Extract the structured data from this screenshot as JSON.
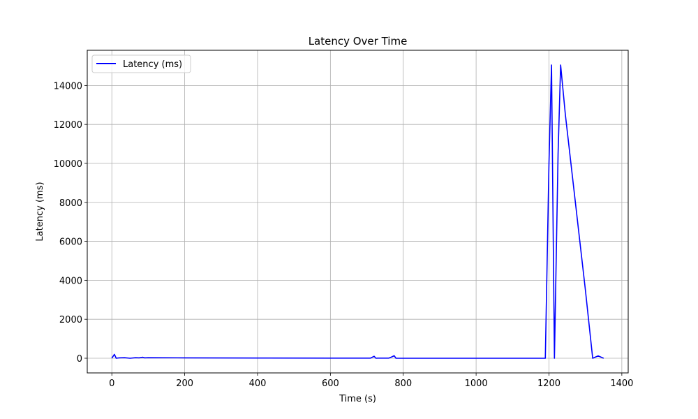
{
  "chart_data": {
    "type": "line",
    "title": "Latency Over Time",
    "xlabel": "Time (s)",
    "ylabel": "Latency (ms)",
    "xlim": [
      -67.5,
      1417.5
    ],
    "ylim": [
      -753,
      15805
    ],
    "xticks": [
      0,
      200,
      400,
      600,
      800,
      1000,
      1200,
      1400
    ],
    "yticks": [
      0,
      2000,
      4000,
      6000,
      8000,
      10000,
      12000,
      14000
    ],
    "grid": true,
    "legend_position": "top-left",
    "series": [
      {
        "name": "Latency (ms)",
        "color": "#0000ff",
        "x": [
          0,
          7,
          12,
          20,
          35,
          50,
          65,
          75,
          85,
          90,
          100,
          200,
          400,
          600,
          710,
          720,
          725,
          730,
          760,
          770,
          775,
          780,
          1000,
          1190,
          1200,
          1207,
          1215,
          1225,
          1232,
          1245,
          1300,
          1320,
          1335,
          1350
        ],
        "y": [
          0,
          200,
          0,
          20,
          30,
          0,
          30,
          20,
          50,
          20,
          30,
          20,
          10,
          5,
          5,
          100,
          0,
          5,
          5,
          80,
          130,
          0,
          0,
          0,
          10000,
          15050,
          0,
          10500,
          15050,
          12500,
          3500,
          0,
          120,
          0
        ]
      }
    ]
  }
}
